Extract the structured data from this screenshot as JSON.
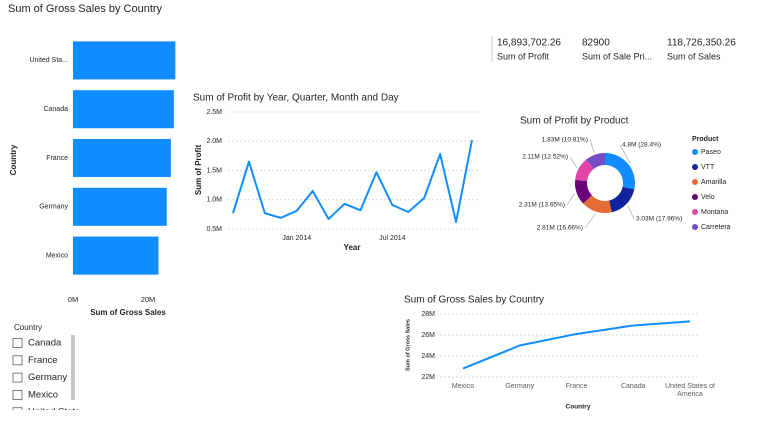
{
  "chart_data": [
    {
      "type": "bar",
      "orientation": "horizontal",
      "title": "Sum of Gross Sales by Country",
      "categories": [
        "United Sta...",
        "Canada",
        "France",
        "Germany",
        "Mexico"
      ],
      "values": [
        27300000,
        26900000,
        26100000,
        25000000,
        22800000
      ],
      "color": "#118DFF",
      "xlim": [
        0,
        28000000
      ],
      "xticks": [
        {
          "value": 0,
          "label": "0M"
        },
        {
          "value": 20000000,
          "label": "20M"
        }
      ],
      "x_label": "Sum of Gross Sales",
      "y_label": "Country",
      "grid": false
    },
    {
      "type": "line",
      "title": "Sum of Profit by Year, Quarter, Month and Day",
      "x": [
        "2013-09",
        "2013-10",
        "2013-11",
        "2013-12",
        "2014-01",
        "2014-02",
        "2014-03",
        "2014-04",
        "2014-05",
        "2014-06",
        "2014-07",
        "2014-08",
        "2014-09",
        "2014-10",
        "2014-11",
        "2014-12"
      ],
      "values": [
        770000,
        1650000,
        770000,
        690000,
        810000,
        1150000,
        670000,
        930000,
        820000,
        1470000,
        910000,
        790000,
        1030000,
        1780000,
        620000,
        2020000
      ],
      "color": "#118DFF",
      "xlim": [
        "2013-09",
        "2014-12"
      ],
      "xticks": [
        {
          "value": "2014-01",
          "label": "Jan 2014"
        },
        {
          "value": "2014-07",
          "label": "Jul 2014"
        }
      ],
      "ylim": [
        450000,
        2550000
      ],
      "yticks": [
        {
          "value": 500000,
          "label": "0.5M"
        },
        {
          "value": 1000000,
          "label": "1.0M"
        },
        {
          "value": 1500000,
          "label": "1.5M"
        },
        {
          "value": 2000000,
          "label": "2.0M"
        },
        {
          "value": 2500000,
          "label": "2.5M"
        }
      ],
      "x_label": "Year",
      "y_label": "Sum of Profit",
      "grid": true
    },
    {
      "type": "donut",
      "title": "Sum of Profit by Product",
      "legend_title": "Product",
      "categories": [
        "Paseo",
        "VTT",
        "Amarilla",
        "Velo",
        "Montana",
        "Carretera"
      ],
      "values": [
        4800000,
        3030000,
        2810000,
        2310000,
        2110000,
        1830000
      ],
      "value_labels": [
        "4.8M (28.4%)",
        "3.03M (17.96%)",
        "2.81M (16.66%)",
        "2.31M (13.65%)",
        "2.11M (12.52%)",
        "1.83M (10.81%)"
      ],
      "colors": [
        "#118DFF",
        "#12239E",
        "#E66C37",
        "#6B007B",
        "#E044A7",
        "#744EC2"
      ],
      "legend": "right"
    },
    {
      "type": "line",
      "title": "Sum of Gross Sales by Country",
      "categories": [
        "Mexico",
        "Germany",
        "France",
        "Canada",
        "United States of America"
      ],
      "values": [
        22800000,
        25000000,
        26100000,
        26900000,
        27300000
      ],
      "color": "#118DFF",
      "ylim": [
        21700000,
        28200000
      ],
      "yticks": [
        {
          "value": 22000000,
          "label": "22M"
        },
        {
          "value": 24000000,
          "label": "24M"
        },
        {
          "value": 26000000,
          "label": "26M"
        },
        {
          "value": 28000000,
          "label": "28M"
        }
      ],
      "x_label": "Country",
      "y_label": "Sum of Gross Sales",
      "grid": true
    }
  ],
  "cards": [
    {
      "value": "16,893,702.26",
      "label": "Sum of Profit"
    },
    {
      "value": "82900",
      "label": "Sum of Sale Pri..."
    },
    {
      "value": "118,726,350.26",
      "label": "Sum of Sales"
    }
  ],
  "slicer": {
    "title": "Country",
    "items": [
      "Canada",
      "France",
      "Germany",
      "Mexico",
      "United States of America"
    ]
  }
}
